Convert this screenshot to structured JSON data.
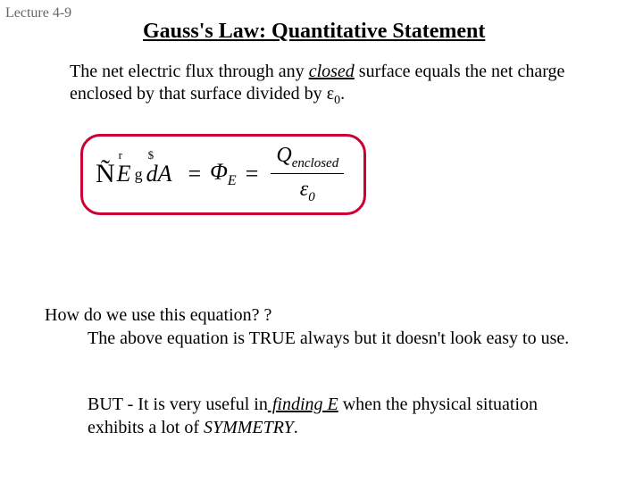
{
  "lecture_label": "Lecture 4-9",
  "title": "Gauss's Law: Quantitative Statement",
  "statement": {
    "pre": "The net electric flux through any ",
    "closed": "closed",
    "post1": " surface equals the net charge enclosed by that surface divided by ",
    "eps": "ε",
    "eps_sub": "0",
    "post2": "."
  },
  "equation": {
    "integral": "Ñ",
    "E": "E",
    "E_arrow": "r",
    "junk": "g",
    "dA": "dA",
    "dA_arrow": "$",
    "eq1": " = ",
    "phi": "Φ",
    "phi_sub": "E",
    "eq2": " = ",
    "Q": "Q",
    "enclosed": "enclosed",
    "eps": "ε",
    "eps_sub": "0"
  },
  "question": {
    "line1": "How do we use this equation? ?",
    "line2": "The above equation is TRUE always but it doesn't look easy to use."
  },
  "but": {
    "pre": "BUT - It is very useful in",
    "finding": " finding E",
    "mid": " when the physical situation exhibits a lot of  ",
    "symmetry": "SYMMETRY",
    "post": "."
  },
  "colors": {
    "border": "#cc0033",
    "text": "#000000",
    "gray": "#666666",
    "bg": "#ffffff"
  }
}
